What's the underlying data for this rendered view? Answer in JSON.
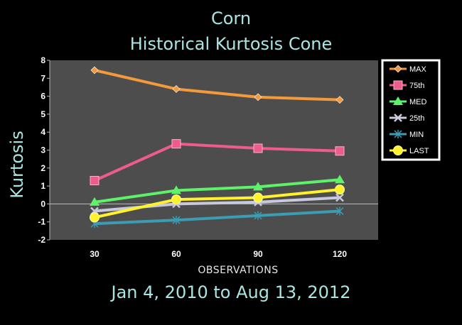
{
  "page": {
    "title_line1": "Corn",
    "title_line2": "Historical Kurtosis Cone",
    "subtitle": "Jan 4, 2010 to Aug 13, 2012"
  },
  "chart_data": {
    "type": "line",
    "title": "Corn Historical Kurtosis Cone",
    "subtitle": "Jan 4, 2010 to Aug 13, 2012",
    "xlabel": "OBSERVATIONS",
    "ylabel": "Kurtosis",
    "categories": [
      "30",
      "60",
      "90",
      "120"
    ],
    "ylim": [
      -2,
      8
    ],
    "yticks": [
      "-2",
      "-1",
      "0",
      "1",
      "2",
      "3",
      "4",
      "5",
      "6",
      "7",
      "8"
    ],
    "grid": false,
    "legend_position": "top-right",
    "plot_background": "#4d4d4d",
    "series": [
      {
        "name": "MAX",
        "values": [
          7.45,
          6.4,
          5.95,
          5.8
        ],
        "color": "#f39a3c",
        "marker": "diamond"
      },
      {
        "name": "75th",
        "values": [
          1.3,
          3.35,
          3.1,
          2.95
        ],
        "color": "#ee5c8e",
        "marker": "square"
      },
      {
        "name": "MED",
        "values": [
          0.1,
          0.75,
          0.95,
          1.35
        ],
        "color": "#5df26a",
        "marker": "triangle"
      },
      {
        "name": "25th",
        "values": [
          -0.4,
          0.0,
          0.1,
          0.35
        ],
        "color": "#c9c9dd",
        "marker": "x"
      },
      {
        "name": "MIN",
        "values": [
          -1.1,
          -0.9,
          -0.65,
          -0.4
        ],
        "color": "#3a9db3",
        "marker": "star"
      },
      {
        "name": "LAST",
        "values": [
          -0.75,
          0.25,
          0.35,
          0.8
        ],
        "color": "#fff22a",
        "marker": "circle"
      }
    ]
  }
}
